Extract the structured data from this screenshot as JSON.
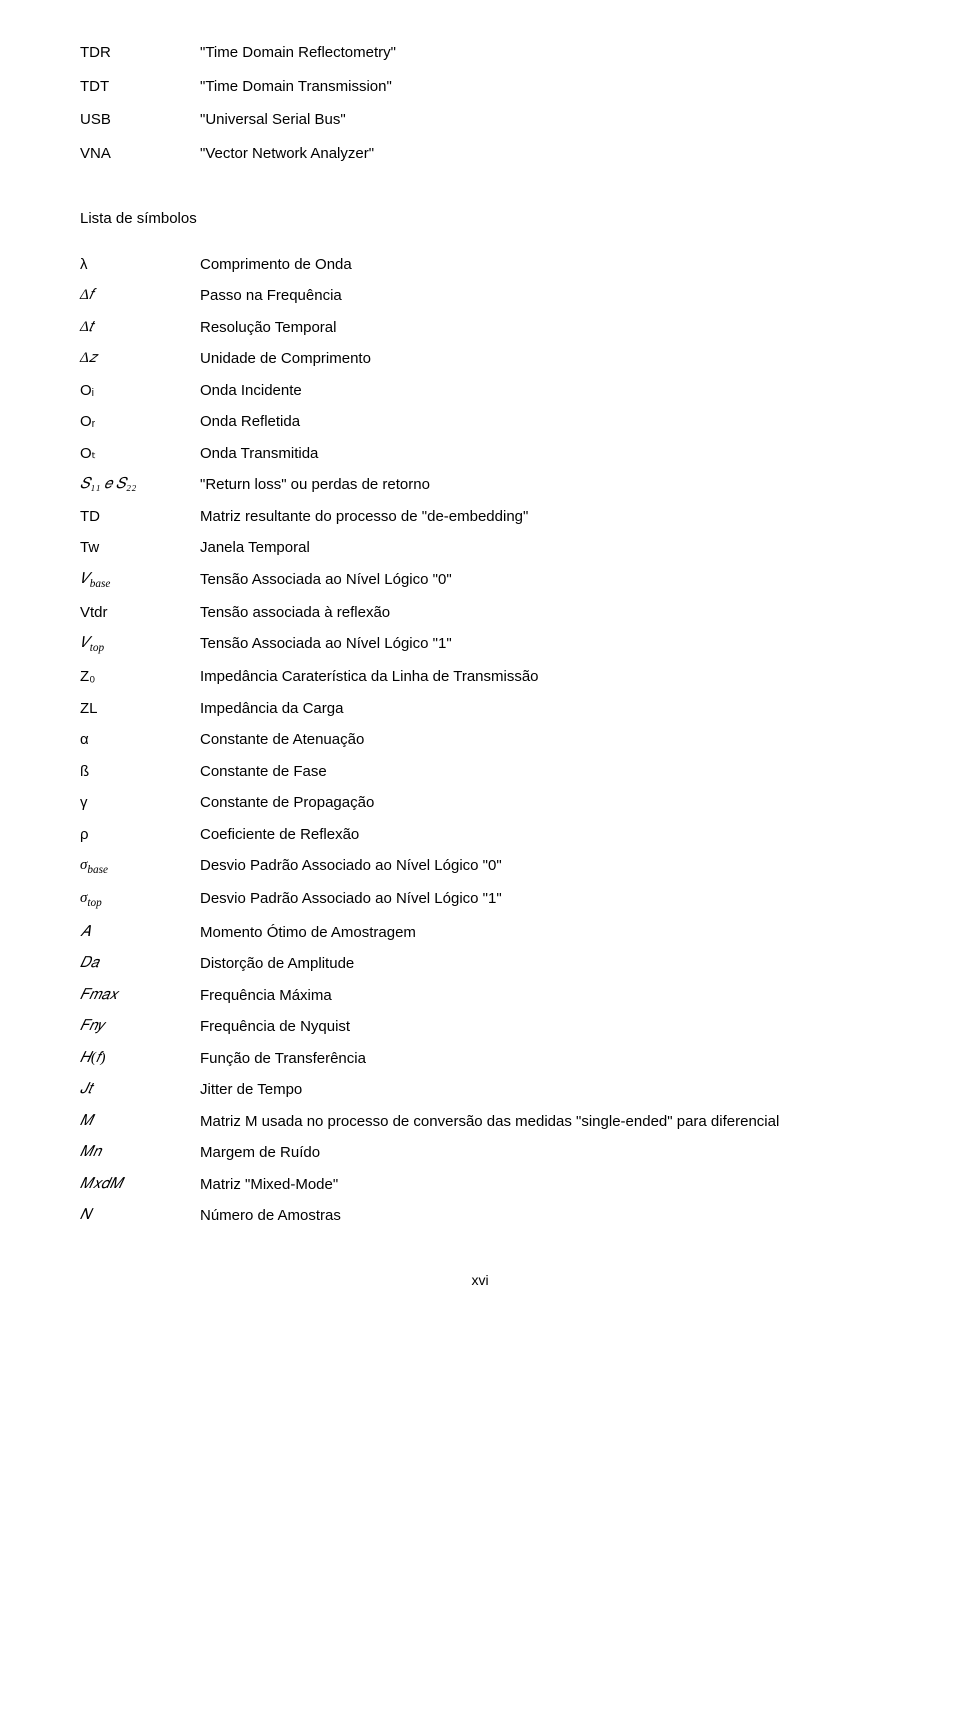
{
  "abbrev": [
    {
      "term": "TDR",
      "def": "\"Time Domain Reflectometry\""
    },
    {
      "term": "TDT",
      "def": "\"Time Domain Transmission\""
    },
    {
      "term": "USB",
      "def": "\"Universal Serial Bus\""
    },
    {
      "term": "VNA",
      "def": "\"Vector Network Analyzer\""
    }
  ],
  "section_title": "Lista de símbolos",
  "symbols": [
    {
      "sym": "λ",
      "cls": "sym-greek",
      "desc": "Comprimento de Onda"
    },
    {
      "sym": "Δ𝑓",
      "cls": "sym",
      "desc": "Passo na Frequência"
    },
    {
      "sym": "Δ𝑡",
      "cls": "sym",
      "desc": "Resolução Temporal"
    },
    {
      "sym": "Δ𝑧",
      "cls": "sym",
      "desc": "Unidade de Comprimento"
    },
    {
      "sym": "Oᵢ",
      "cls": "sym-upright",
      "desc": "Onda Incidente"
    },
    {
      "sym": "Oᵣ",
      "cls": "sym-upright",
      "desc": "Onda Refletida"
    },
    {
      "sym": "Oₜ",
      "cls": "sym-upright",
      "desc": "Onda Transmitida"
    },
    {
      "sym": "𝑆₁₁ 𝑒 𝑆₂₂",
      "cls": "sym",
      "desc": "\"Return loss\" ou perdas de retorno"
    },
    {
      "sym": "T_D",
      "cls": "sym-upright",
      "desc": "Matriz resultante do processo de \"de-embedding\""
    },
    {
      "sym": "Tw",
      "cls": "sym-upright",
      "desc": "Janela Temporal"
    },
    {
      "sym": "𝑉_base",
      "cls": "sym",
      "desc": "Tensão Associada ao Nível Lógico \"0\""
    },
    {
      "sym": "Vtdr",
      "cls": "sym-upright",
      "desc": "Tensão associada à reflexão"
    },
    {
      "sym": "𝑉_top",
      "cls": "sym",
      "desc": "Tensão Associada ao Nível Lógico \"1\""
    },
    {
      "sym": "Z₀",
      "cls": "sym-upright",
      "desc": "Impedância Caraterística da Linha de Transmissão"
    },
    {
      "sym": "Z_L",
      "cls": "sym-upright",
      "desc": "Impedância da Carga"
    },
    {
      "sym": "α",
      "cls": "sym-greek",
      "desc": "Constante de Atenuação"
    },
    {
      "sym": "ß",
      "cls": "sym-greek",
      "desc": "Constante de Fase"
    },
    {
      "sym": "γ",
      "cls": "sym-greek",
      "desc": "Constante de Propagação"
    },
    {
      "sym": "ρ",
      "cls": "sym-greek",
      "desc": "Coeficiente de Reflexão"
    },
    {
      "sym": "σ_base",
      "cls": "sym",
      "desc": "Desvio Padrão Associado ao Nível Lógico \"0\""
    },
    {
      "sym": "σ_top",
      "cls": "sym",
      "desc": "Desvio Padrão Associado ao Nível Lógico \"1\""
    },
    {
      "sym": "𝐴",
      "cls": "sym",
      "desc": "Momento Ótimo de Amostragem"
    },
    {
      "sym": "𝐷𝑎",
      "cls": "sym",
      "desc": "Distorção de Amplitude"
    },
    {
      "sym": "𝐹𝑚𝑎𝑥",
      "cls": "sym",
      "desc": "Frequência Máxima"
    },
    {
      "sym": "𝐹𝑛𝑦",
      "cls": "sym",
      "desc": "Frequência de Nyquist"
    },
    {
      "sym": "𝐻(𝑓)",
      "cls": "sym",
      "desc": "Função de Transferência"
    },
    {
      "sym": "𝐽𝑡",
      "cls": "sym",
      "desc": "Jitter de Tempo"
    },
    {
      "sym": "𝑀",
      "cls": "sym",
      "desc": "Matriz M usada no processo de conversão das medidas \"single-ended\" para diferencial"
    },
    {
      "sym": "𝑀𝑛",
      "cls": "sym",
      "desc": "Margem de Ruído"
    },
    {
      "sym": "𝑀𝑥𝑑𝑀",
      "cls": "sym",
      "desc": "Matriz \"Mixed-Mode\""
    },
    {
      "sym": "𝑁",
      "cls": "sym",
      "desc": "Número de Amostras"
    }
  ],
  "page_num": "xvi"
}
